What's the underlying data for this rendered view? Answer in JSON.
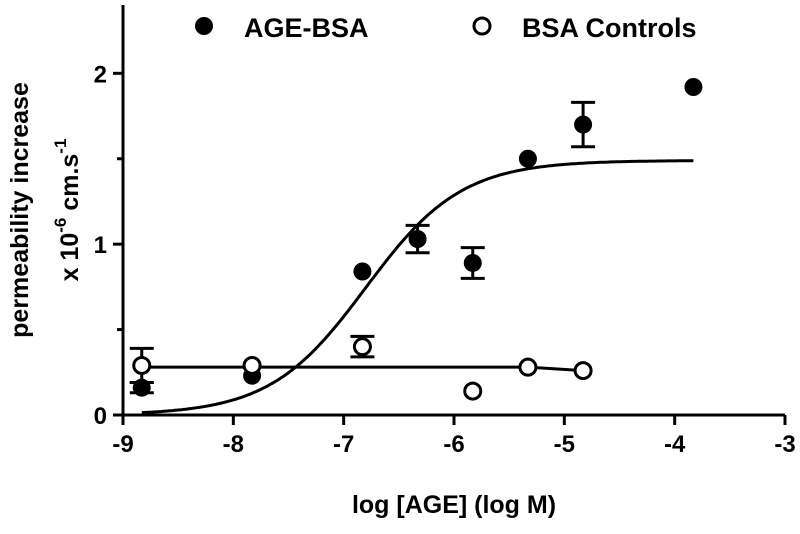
{
  "chart_data": {
    "type": "scatter",
    "title": "",
    "xlabel": "log [AGE] (log M)",
    "ylabel_line1": "permeability increase",
    "ylabel_line2_prefix": "x 10",
    "ylabel_line2_exp": "-6",
    "ylabel_line2_unit": " cm.s",
    "ylabel_line2_unit_exp": "-1",
    "xlim": [
      -9,
      -3
    ],
    "ylim": [
      0,
      2.4
    ],
    "xticks": [
      -9,
      -8,
      -7,
      -6,
      -5,
      -4,
      -3
    ],
    "xtick_labels": [
      "-9",
      "-8",
      "-7",
      "-6",
      "-5",
      "-4",
      "-3"
    ],
    "yticks": [
      0,
      1,
      2
    ],
    "ytick_labels": [
      "0",
      "1",
      "2"
    ],
    "grid": false,
    "legend_placement": "top",
    "series": [
      {
        "name": "AGE-BSA",
        "marker": "filled-circle",
        "color": "#000000",
        "x": [
          -8.83,
          -7.83,
          -6.83,
          -6.33,
          -5.83,
          -5.33,
          -4.83,
          -3.83
        ],
        "y": [
          0.16,
          0.23,
          0.84,
          1.03,
          0.89,
          1.5,
          1.7,
          1.92
        ],
        "error": [
          0.03,
          0,
          0,
          0.08,
          0.09,
          0,
          0.13,
          0
        ],
        "fit": {
          "model": "sigmoid",
          "bottom": 0,
          "top": 1.49,
          "logEC50": -6.8,
          "hill": 1,
          "x_range": [
            -8.83,
            -3.83
          ]
        }
      },
      {
        "name": "BSA Controls",
        "marker": "open-circle",
        "color": "#000000",
        "x": [
          -8.83,
          -7.83,
          -6.83,
          -5.83,
          -5.33,
          -4.83
        ],
        "y": [
          0.29,
          0.29,
          0.4,
          0.14,
          0.28,
          0.26
        ],
        "error": [
          0.1,
          0,
          0.06,
          0,
          0,
          0
        ],
        "fit_line": {
          "x": [
            -8.83,
            -5.33,
            -4.83
          ],
          "y": [
            0.28,
            0.28,
            0.26
          ]
        }
      }
    ]
  }
}
